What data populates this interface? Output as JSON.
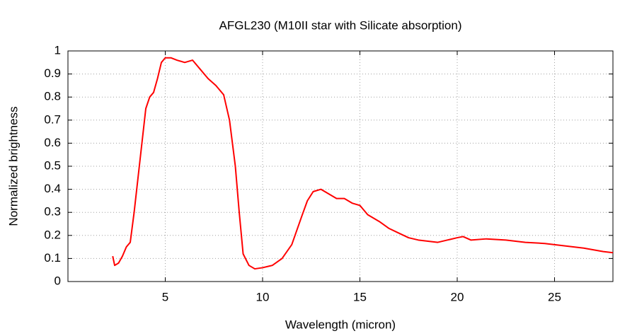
{
  "chart_data": {
    "type": "line",
    "title": "AFGL230 (M10II star with Silicate absorption)",
    "x_label": "Wavelength (micron)",
    "y_label": "Normalized brightness",
    "xlim": [
      0,
      28
    ],
    "xticks": [
      5,
      10,
      15,
      20,
      25
    ],
    "ylim": [
      0,
      1
    ],
    "yticks": [
      0,
      0.1,
      0.2,
      0.3,
      0.4,
      0.5,
      0.6,
      0.7,
      0.8,
      0.9,
      1
    ],
    "grid": true,
    "x": [
      2.3,
      2.4,
      2.6,
      2.8,
      3.0,
      3.2,
      3.4,
      3.6,
      3.8,
      4.0,
      4.2,
      4.4,
      4.6,
      4.8,
      5.0,
      5.3,
      5.6,
      6.0,
      6.4,
      6.8,
      7.2,
      7.6,
      8.0,
      8.3,
      8.6,
      8.8,
      9.0,
      9.3,
      9.6,
      10.0,
      10.5,
      11.0,
      11.5,
      12.0,
      12.3,
      12.6,
      13.0,
      13.4,
      13.8,
      14.2,
      14.6,
      15.0,
      15.4,
      16.0,
      16.5,
      17.0,
      17.5,
      18.0,
      19.0,
      19.5,
      20.0,
      20.3,
      20.7,
      21.5,
      22.5,
      23.5,
      24.5,
      25.5,
      26.5,
      27.5,
      28.0
    ],
    "series": [
      {
        "color": "#ff0000",
        "values": [
          0.11,
          0.07,
          0.08,
          0.11,
          0.15,
          0.17,
          0.3,
          0.45,
          0.6,
          0.75,
          0.8,
          0.82,
          0.88,
          0.95,
          0.97,
          0.97,
          0.96,
          0.95,
          0.96,
          0.92,
          0.88,
          0.85,
          0.81,
          0.7,
          0.5,
          0.3,
          0.12,
          0.07,
          0.055,
          0.06,
          0.07,
          0.1,
          0.16,
          0.28,
          0.35,
          0.39,
          0.4,
          0.38,
          0.36,
          0.36,
          0.34,
          0.33,
          0.29,
          0.26,
          0.23,
          0.21,
          0.19,
          0.18,
          0.17,
          0.18,
          0.19,
          0.195,
          0.18,
          0.185,
          0.18,
          0.17,
          0.165,
          0.155,
          0.145,
          0.13,
          0.125
        ]
      }
    ]
  }
}
